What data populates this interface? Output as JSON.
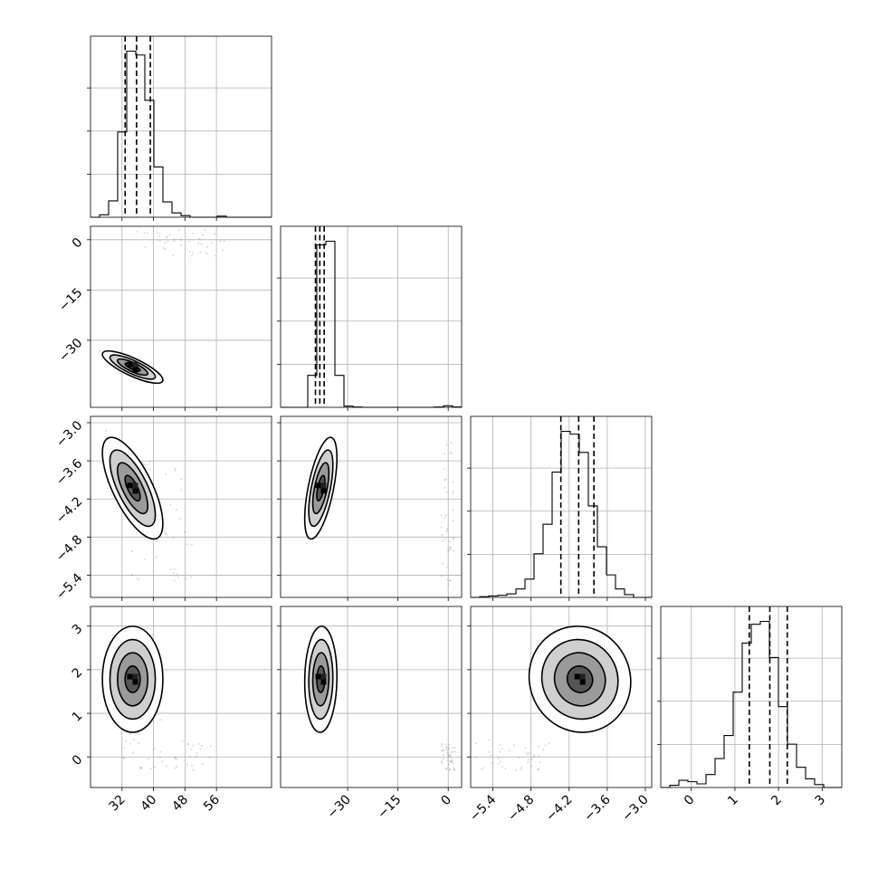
{
  "chart_data": {
    "type": "corner",
    "parameters": [
      "p0",
      "p1",
      "p2",
      "p3"
    ],
    "ranges": [
      [
        24,
        70
      ],
      [
        -50,
        4
      ],
      [
        -5.75,
        -2.9
      ],
      [
        -0.7,
        3.45
      ]
    ],
    "ticks": [
      [
        32,
        40,
        48,
        56
      ],
      [
        -30,
        -15,
        0
      ],
      [
        -5.4,
        -4.8,
        -4.2,
        -3.6,
        -3.0
      ],
      [
        0,
        1,
        2,
        3
      ]
    ],
    "tick_labels": [
      [
        "32",
        "40",
        "48",
        "56"
      ],
      [
        "0",
        "−15",
        "−30"
      ],
      [
        "−3.0",
        "−3.6",
        "−4.2",
        "−4.8",
        "−5.4"
      ],
      [
        "3",
        "2",
        "1",
        "0"
      ]
    ],
    "x_tick_labels": [
      [
        "32",
        "40",
        "48",
        "56"
      ],
      [
        "−30",
        "−15",
        "0"
      ],
      [
        "−5.4",
        "−4.8",
        "−4.2",
        "−3.6",
        "−3.0"
      ],
      [
        "0",
        "1",
        "2",
        "3"
      ]
    ],
    "quantiles": [
      [
        32.8,
        35.7,
        39.2
      ],
      [
        -39.6,
        -38.3,
        -37.0
      ],
      [
        -4.33,
        -4.05,
        -3.81
      ],
      [
        1.33,
        1.8,
        2.2
      ]
    ],
    "histograms": [
      {
        "edges": [
          24,
          26.3,
          28.6,
          30.9,
          33.2,
          35.5,
          37.8,
          40.1,
          42.4,
          44.7,
          47.0,
          49.3,
          51.6,
          53.9,
          56.2,
          58.5,
          60.8,
          63.1,
          65.4,
          67.7,
          70
        ],
        "counts": [
          0,
          22,
          150,
          780,
          1520,
          1485,
          1070,
          460,
          140,
          40,
          15,
          0,
          0,
          0,
          10,
          0,
          0,
          0,
          0,
          0
        ]
      },
      {
        "edges": [
          -50,
          -47.3,
          -44.6,
          -41.9,
          -39.2,
          -36.5,
          -33.8,
          -31.1,
          -28.4,
          -25.7,
          -23.0,
          -20.3,
          -17.6,
          -14.9,
          -12.2,
          -9.5,
          -6.8,
          -4.1,
          -1.4,
          1.3,
          4.0
        ],
        "counts": [
          0,
          0,
          0,
          520,
          2640,
          2700,
          520,
          20,
          5,
          0,
          0,
          0,
          0,
          0,
          0,
          0,
          0,
          5,
          25,
          5
        ]
      },
      {
        "edges": [
          -5.75,
          -5.6075,
          -5.465,
          -5.3225,
          -5.18,
          -5.0375,
          -4.895,
          -4.7525,
          -4.61,
          -4.4675,
          -4.325,
          -4.1825,
          -4.04,
          -3.8975,
          -3.755,
          -3.6125,
          -3.47,
          -3.3275,
          -3.185,
          -3.0425,
          -2.9
        ],
        "counts": [
          0,
          5,
          10,
          15,
          25,
          60,
          130,
          310,
          520,
          890,
          1180,
          1160,
          1030,
          650,
          360,
          160,
          60,
          20,
          0,
          0
        ]
      },
      {
        "edges": [
          -0.7,
          -0.4925,
          -0.285,
          -0.0775,
          0.13,
          0.3375,
          0.545,
          0.7525,
          0.96,
          1.1675,
          1.375,
          1.5825,
          1.79,
          1.9975,
          2.205,
          2.4125,
          2.62,
          2.8275,
          3.035,
          3.2425,
          3.45
        ],
        "counts": [
          0,
          15,
          50,
          40,
          25,
          90,
          200,
          360,
          660,
          1000,
          1130,
          1150,
          900,
          560,
          300,
          140,
          60,
          20,
          0,
          0
        ]
      }
    ],
    "pairs": [
      {
        "x": 0,
        "y": 1,
        "mean": [
          34.7,
          -38.0
        ],
        "sigma": [
          2.4,
          1.5
        ],
        "rho": -0.8,
        "outlier_band": {
          "x": [
            34,
            58
          ],
          "y": [
            -5,
            3
          ]
        }
      },
      {
        "x": 0,
        "y": 2,
        "mean": [
          34.7,
          -4.03
        ],
        "sigma": [
          2.4,
          0.25
        ],
        "rho": -0.7,
        "outlier_band": {
          "x": [
            34,
            52
          ],
          "y": [
            -5.5,
            -3.5
          ]
        }
      },
      {
        "x": 1,
        "y": 2,
        "mean": [
          -38.0,
          -4.03
        ],
        "sigma": [
          1.5,
          0.25
        ],
        "rho": 0.6,
        "outlier_band": {
          "x": [
            -2,
            2
          ],
          "y": [
            -5.6,
            -3.3
          ]
        }
      },
      {
        "x": 0,
        "y": 3,
        "mean": [
          34.7,
          1.78
        ],
        "sigma": [
          2.4,
          0.38
        ],
        "rho": 0.0,
        "outlier_band": {
          "x": [
            32,
            55
          ],
          "y": [
            -0.3,
            0.4
          ]
        }
      },
      {
        "x": 1,
        "y": 3,
        "mean": [
          -38.0,
          1.78
        ],
        "sigma": [
          1.5,
          0.38
        ],
        "rho": 0.05,
        "outlier_band": {
          "x": [
            -2,
            2
          ],
          "y": [
            -0.3,
            0.3
          ]
        }
      },
      {
        "x": 2,
        "y": 3,
        "mean": [
          -4.03,
          1.78
        ],
        "sigma": [
          0.25,
          0.38
        ],
        "rho": -0.05,
        "outlier_band": {
          "x": [
            -5.7,
            -4.5
          ],
          "y": [
            -0.3,
            0.4
          ]
        }
      }
    ],
    "contour_levels_sigma": [
      0.5,
      1.0,
      1.5,
      2.0
    ],
    "grid": true
  }
}
